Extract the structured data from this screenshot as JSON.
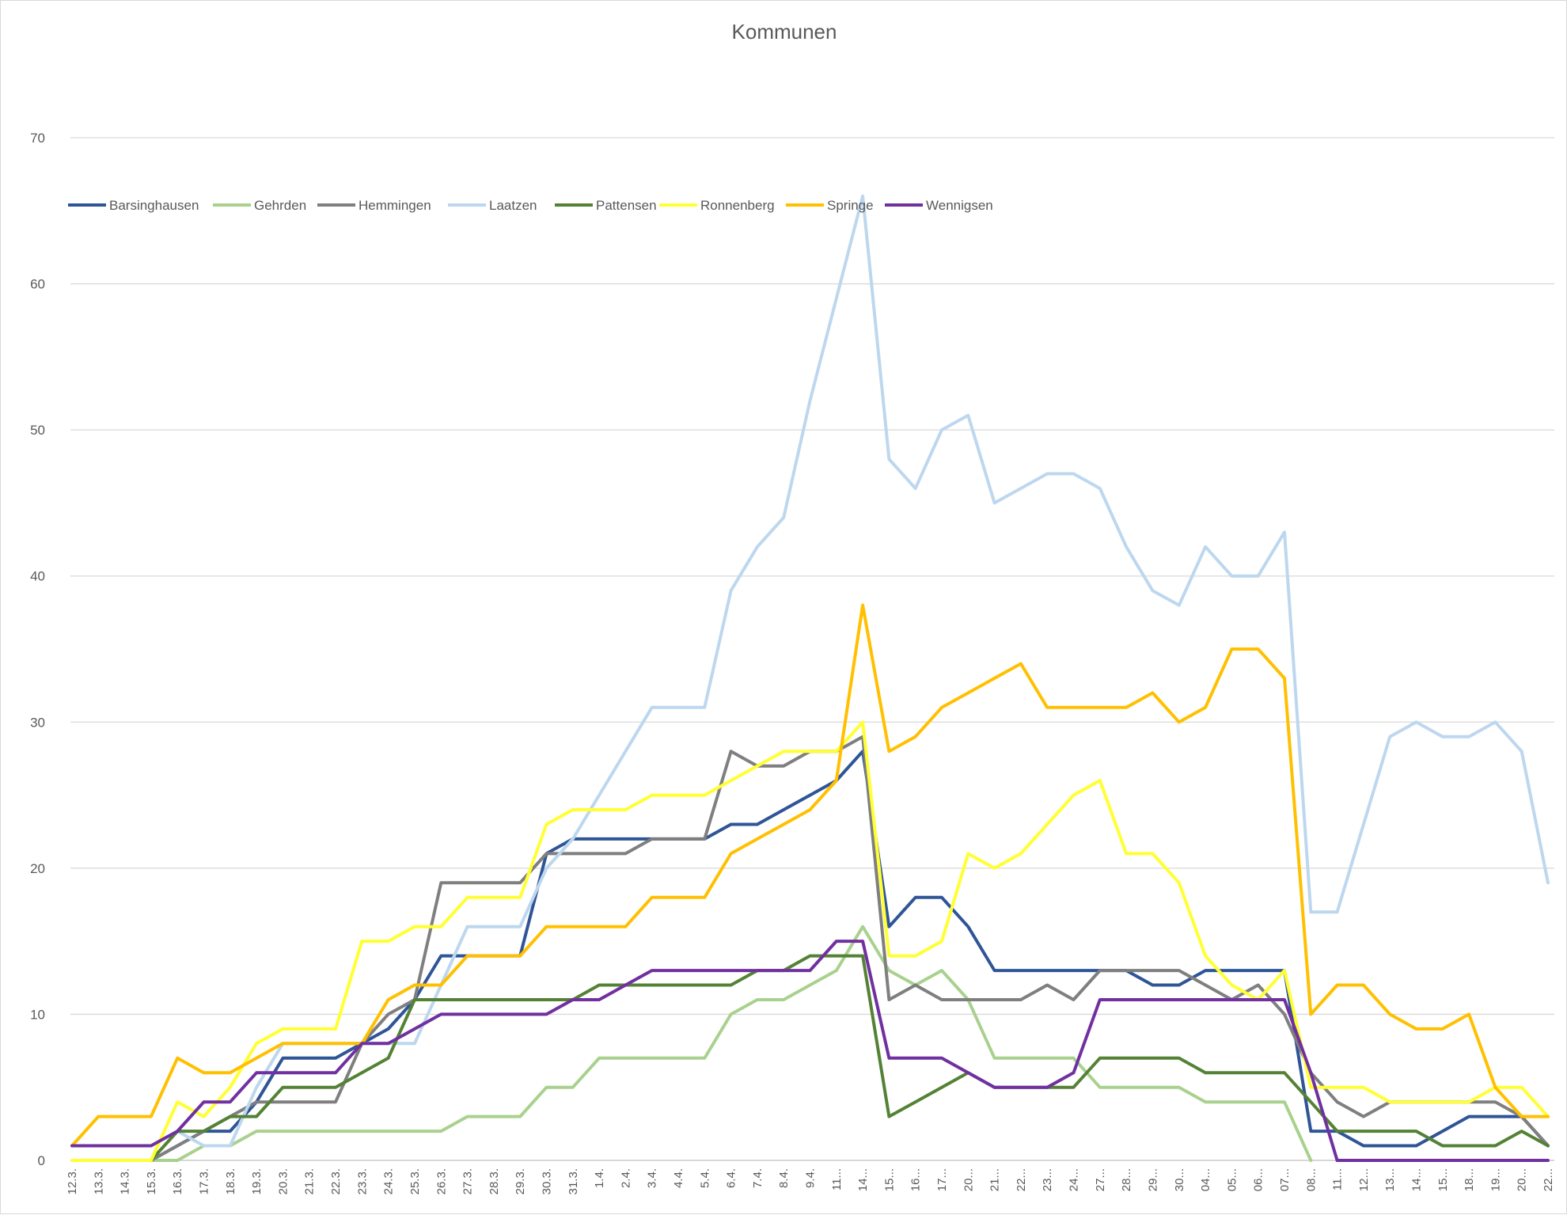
{
  "chart_data": {
    "type": "line",
    "title": "Kommunen",
    "xlabel": "",
    "ylabel": "",
    "ylim": [
      0,
      70
    ],
    "yticks": [
      0,
      10,
      20,
      30,
      40,
      50,
      60,
      70
    ],
    "grid": true,
    "legend_position": "top-left",
    "categories": [
      "12.3.",
      "13.3.",
      "14.3.",
      "15.3.",
      "16.3.",
      "17.3.",
      "18.3.",
      "19.3.",
      "20.3.",
      "21.3.",
      "22.3.",
      "23.3.",
      "24.3.",
      "25.3.",
      "26.3.",
      "27.3.",
      "28.3.",
      "29.3.",
      "30.3.",
      "31.3.",
      "1.4.",
      "2.4.",
      "3.4.",
      "4.4.",
      "5.4.",
      "6.4.",
      "7.4.",
      "8.4.",
      "9.4.",
      "11...",
      "14...",
      "15...",
      "16...",
      "17...",
      "20...",
      "21...",
      "22...",
      "23...",
      "24...",
      "27...",
      "28...",
      "29...",
      "30...",
      "04...",
      "05...",
      "06...",
      "07...",
      "08...",
      "11...",
      "12...",
      "13...",
      "14...",
      "15...",
      "18...",
      "19...",
      "20...",
      "22..."
    ],
    "series": [
      {
        "name": "Barsinghausen",
        "color": "#2f5597",
        "values": [
          null,
          null,
          null,
          0,
          1,
          2,
          2,
          4,
          7,
          7,
          7,
          8,
          9,
          11,
          14,
          14,
          14,
          14,
          21,
          22,
          22,
          22,
          22,
          22,
          22,
          23,
          23,
          24,
          25,
          26,
          28,
          16,
          18,
          18,
          16,
          13,
          13,
          13,
          13,
          13,
          13,
          12,
          12,
          13,
          13,
          13,
          13,
          2,
          2,
          1,
          1,
          1,
          2,
          3,
          3,
          3,
          1
        ]
      },
      {
        "name": "Gehrden",
        "color": "#a9d18e",
        "values": [
          null,
          null,
          null,
          0,
          0,
          1,
          1,
          2,
          2,
          2,
          2,
          2,
          2,
          2,
          2,
          3,
          3,
          3,
          5,
          5,
          7,
          7,
          7,
          7,
          7,
          10,
          11,
          11,
          12,
          13,
          16,
          13,
          12,
          13,
          11,
          7,
          7,
          7,
          7,
          5,
          5,
          5,
          5,
          4,
          4,
          4,
          4,
          0,
          null,
          null,
          null,
          null,
          null,
          null,
          null,
          null,
          null
        ]
      },
      {
        "name": "Hemmingen",
        "color": "#7f7f7f",
        "values": [
          null,
          null,
          null,
          0,
          1,
          2,
          3,
          4,
          4,
          4,
          4,
          8,
          10,
          11,
          19,
          19,
          19,
          19,
          21,
          21,
          21,
          21,
          22,
          22,
          22,
          28,
          27,
          27,
          28,
          28,
          29,
          11,
          12,
          11,
          11,
          11,
          11,
          12,
          11,
          13,
          13,
          13,
          13,
          12,
          11,
          12,
          10,
          6,
          4,
          3,
          4,
          4,
          4,
          4,
          4,
          3,
          1
        ]
      },
      {
        "name": "Laatzen",
        "color": "#bdd7ee",
        "values": [
          null,
          null,
          null,
          0,
          2,
          1,
          1,
          5,
          8,
          8,
          8,
          8,
          8,
          8,
          12,
          16,
          16,
          16,
          20,
          22,
          25,
          28,
          31,
          31,
          31,
          39,
          42,
          44,
          52,
          59,
          66,
          48,
          46,
          50,
          51,
          45,
          46,
          47,
          47,
          46,
          42,
          39,
          38,
          42,
          40,
          40,
          43,
          17,
          17,
          23,
          29,
          30,
          29,
          29,
          30,
          28,
          19
        ]
      },
      {
        "name": "Pattensen",
        "color": "#548235",
        "values": [
          null,
          null,
          null,
          0,
          2,
          2,
          3,
          3,
          5,
          5,
          5,
          6,
          7,
          11,
          11,
          11,
          11,
          11,
          11,
          11,
          12,
          12,
          12,
          12,
          12,
          12,
          13,
          13,
          14,
          14,
          14,
          3,
          4,
          5,
          6,
          5,
          5,
          5,
          5,
          7,
          7,
          7,
          7,
          6,
          6,
          6,
          6,
          4,
          2,
          2,
          2,
          2,
          1,
          1,
          1,
          2,
          1
        ]
      },
      {
        "name": "Ronnenberg",
        "color": "#ffff33",
        "values": [
          0,
          0,
          0,
          0,
          4,
          3,
          5,
          8,
          9,
          9,
          9,
          15,
          15,
          16,
          16,
          18,
          18,
          18,
          23,
          24,
          24,
          24,
          25,
          25,
          25,
          26,
          27,
          28,
          28,
          28,
          30,
          14,
          14,
          15,
          21,
          20,
          21,
          23,
          25,
          26,
          21,
          21,
          19,
          14,
          12,
          11,
          13,
          5,
          5,
          5,
          4,
          4,
          4,
          4,
          5,
          5,
          3
        ]
      },
      {
        "name": "Springe",
        "color": "#ffc000",
        "values": [
          1,
          3,
          3,
          3,
          7,
          6,
          6,
          7,
          8,
          8,
          8,
          8,
          11,
          12,
          12,
          14,
          14,
          14,
          16,
          16,
          16,
          16,
          18,
          18,
          18,
          21,
          22,
          23,
          24,
          26,
          38,
          28,
          29,
          31,
          32,
          33,
          34,
          31,
          31,
          31,
          31,
          32,
          30,
          31,
          35,
          35,
          33,
          10,
          12,
          12,
          10,
          9,
          9,
          10,
          5,
          3,
          3
        ]
      },
      {
        "name": "Wennigsen",
        "color": "#7030a0",
        "values": [
          1,
          1,
          1,
          1,
          2,
          4,
          4,
          6,
          6,
          6,
          6,
          8,
          8,
          9,
          10,
          10,
          10,
          10,
          10,
          11,
          11,
          12,
          13,
          13,
          13,
          13,
          13,
          13,
          13,
          15,
          15,
          7,
          7,
          7,
          6,
          5,
          5,
          5,
          6,
          11,
          11,
          11,
          11,
          11,
          11,
          11,
          11,
          6,
          0,
          0,
          0,
          0,
          0,
          0,
          0,
          0,
          0
        ]
      }
    ]
  }
}
